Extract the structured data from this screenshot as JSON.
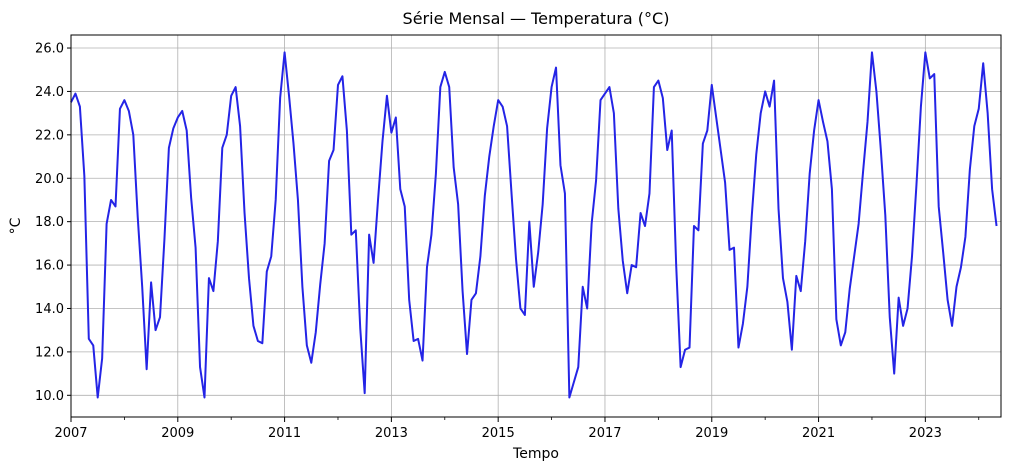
{
  "chart_data": {
    "type": "line",
    "title": "Série Mensal — Temperatura (°C)",
    "xlabel": "Tempo",
    "ylabel": "°C",
    "grid": true,
    "xlim": [
      2007.0,
      2024.4167
    ],
    "ylim": [
      9.0,
      26.6
    ],
    "x_ticks": [
      "2007",
      "2009",
      "2011",
      "2013",
      "2015",
      "2017",
      "2019",
      "2021",
      "2023"
    ],
    "y_ticks": [
      "10.0",
      "12.0",
      "14.0",
      "16.0",
      "18.0",
      "20.0",
      "22.0",
      "24.0",
      "26.0"
    ],
    "series": [
      {
        "color": "#2424e6",
        "x_start": "2007-01",
        "frequency": "monthly",
        "values": [
          23.5,
          23.9,
          23.3,
          20.1,
          12.6,
          12.3,
          9.9,
          11.7,
          17.9,
          19.0,
          18.7,
          23.2,
          23.6,
          23.1,
          22.0,
          18.2,
          15.0,
          11.2,
          15.2,
          13.0,
          13.6,
          17.2,
          21.4,
          22.3,
          22.8,
          23.1,
          22.2,
          19.1,
          16.8,
          11.3,
          9.9,
          15.4,
          14.8,
          17.1,
          21.4,
          22.0,
          23.8,
          24.2,
          22.4,
          18.4,
          15.4,
          13.2,
          12.5,
          12.4,
          15.7,
          16.4,
          19.0,
          23.7,
          25.8,
          23.8,
          21.6,
          19.0,
          15.0,
          12.3,
          11.5,
          12.9,
          15.1,
          17.0,
          20.8,
          21.3,
          24.3,
          24.7,
          22.2,
          17.4,
          17.6,
          13.1,
          10.1,
          17.4,
          16.1,
          19.0,
          21.7,
          23.8,
          22.1,
          22.8,
          19.5,
          18.7,
          14.4,
          12.5,
          12.6,
          11.6,
          15.9,
          17.4,
          20.2,
          24.2,
          24.9,
          24.2,
          20.5,
          18.8,
          14.8,
          11.9,
          14.4,
          14.7,
          16.4,
          19.2,
          21.0,
          22.4,
          23.6,
          23.3,
          22.4,
          19.3,
          16.3,
          14.0,
          13.7,
          18.0,
          15.0,
          16.6,
          18.8,
          22.3,
          24.2,
          25.1,
          20.6,
          19.3,
          9.9,
          10.6,
          11.3,
          15.0,
          14.0,
          17.9,
          19.9,
          23.6,
          23.9,
          24.2,
          23.0,
          18.6,
          16.2,
          14.7,
          16.0,
          15.9,
          18.4,
          17.8,
          19.3,
          24.2,
          24.5,
          23.7,
          21.3,
          22.2,
          16.0,
          11.3,
          12.1,
          12.2,
          17.8,
          17.6,
          21.6,
          22.2,
          24.3,
          22.8,
          21.3,
          19.8,
          16.7,
          16.8,
          12.2,
          13.3,
          15.0,
          18.3,
          21.1,
          23.0,
          24.0,
          23.3,
          24.5,
          18.6,
          15.4,
          14.3,
          12.1,
          15.5,
          14.8,
          17.1,
          20.2,
          22.2,
          23.6,
          22.6,
          21.7,
          19.5,
          13.5,
          12.3,
          12.9,
          14.9,
          16.4,
          17.9,
          20.3,
          22.6,
          25.8,
          24.0,
          21.3,
          18.3,
          13.6,
          11.0,
          14.5,
          13.2,
          14.0,
          16.4,
          19.7,
          23.3,
          25.8,
          24.6,
          24.8,
          18.7,
          16.6,
          14.4,
          13.2,
          15.0,
          15.9,
          17.3,
          20.4,
          22.4,
          23.2,
          25.3,
          23.0,
          19.5,
          17.8
        ]
      }
    ]
  }
}
